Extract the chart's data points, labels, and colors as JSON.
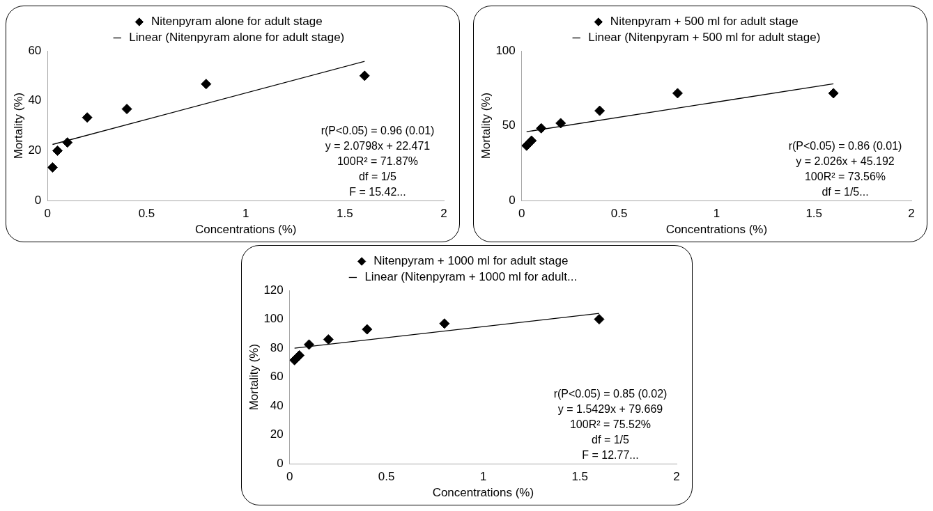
{
  "chart_data": [
    {
      "type": "scatter",
      "xlabel": "Concentrations (%)",
      "ylabel": "Mortality (%)",
      "xlim": [
        0,
        2
      ],
      "xticks": [
        0,
        0.5,
        1,
        1.5,
        2
      ],
      "ylim": [
        0,
        60
      ],
      "yticks": [
        0,
        20,
        40,
        60
      ],
      "grid": false,
      "legend": "top",
      "x": [
        0.025,
        0.05,
        0.1,
        0.2,
        0.4,
        0.8,
        1.6
      ],
      "series": [
        {
          "name": "Nitenpyram alone for adult stage",
          "color": "#000000",
          "marker": "diamond",
          "values": [
            13.3,
            20,
            23.3,
            33.3,
            36.7,
            46.7,
            50
          ]
        },
        {
          "type": "line",
          "name": "Linear (Nitenpyram alone for adult stage)",
          "color": "#000000",
          "marker": "none",
          "line_style": "solid",
          "values": [
            22.5,
            null,
            null,
            null,
            null,
            null,
            55.8
          ]
        }
      ],
      "annotations": [
        "r(P<0.05) = 0.96 (0.01)",
        "y = 2.0798x + 22.471",
        "100R² = 71.87%",
        "df = 1/5",
        "F = 15.42..."
      ]
    },
    {
      "type": "scatter",
      "xlabel": "Concentrations (%)",
      "ylabel": "Mortality (%)",
      "xlim": [
        0,
        2
      ],
      "xticks": [
        0,
        0.5,
        1,
        1.5,
        2
      ],
      "ylim": [
        0,
        100
      ],
      "yticks": [
        0,
        50,
        100
      ],
      "grid": false,
      "legend": "top",
      "x": [
        0.025,
        0.05,
        0.1,
        0.2,
        0.4,
        0.8,
        1.6
      ],
      "series": [
        {
          "name": "Nitenpyram + 500 ml for adult stage",
          "color": "#000000",
          "marker": "diamond",
          "values": [
            36.7,
            40,
            48.3,
            51.7,
            60,
            71.7,
            71.7
          ]
        },
        {
          "type": "line",
          "name": "Linear (Nitenpyram + 500 ml for adult stage)",
          "color": "#000000",
          "marker": "none",
          "line_style": "solid",
          "values": [
            46,
            null,
            null,
            null,
            null,
            null,
            78
          ]
        }
      ],
      "annotations": [
        "r(P<0.05) = 0.86 (0.01)",
        "y = 2.026x + 45.192",
        "100R² = 73.56%",
        "df = 1/5..."
      ]
    },
    {
      "type": "scatter",
      "xlabel": "Concentrations (%)",
      "ylabel": "Mortality (%)",
      "xlim": [
        0,
        2
      ],
      "xticks": [
        0,
        0.5,
        1,
        1.5,
        2
      ],
      "ylim": [
        0,
        120
      ],
      "yticks": [
        0,
        20,
        40,
        60,
        80,
        100,
        120
      ],
      "grid": false,
      "legend": "top",
      "x": [
        0.025,
        0.05,
        0.1,
        0.2,
        0.4,
        0.8,
        1.6
      ],
      "series": [
        {
          "name": "Nitenpyram + 1000 ml for adult stage",
          "color": "#000000",
          "marker": "diamond",
          "values": [
            71.7,
            75,
            82.5,
            86,
            93,
            97,
            100
          ]
        },
        {
          "type": "line",
          "name": "Linear (Nitenpyram + 1000 ml for adult...",
          "color": "#000000",
          "marker": "none",
          "line_style": "solid",
          "values": [
            80,
            null,
            null,
            null,
            null,
            null,
            104
          ]
        }
      ],
      "annotations": [
        "r(P<0.05) = 0.85 (0.02)",
        "y = 1.5429x + 79.669",
        "100R² = 75.52%",
        "df = 1/5",
        "F = 12.77..."
      ]
    }
  ]
}
